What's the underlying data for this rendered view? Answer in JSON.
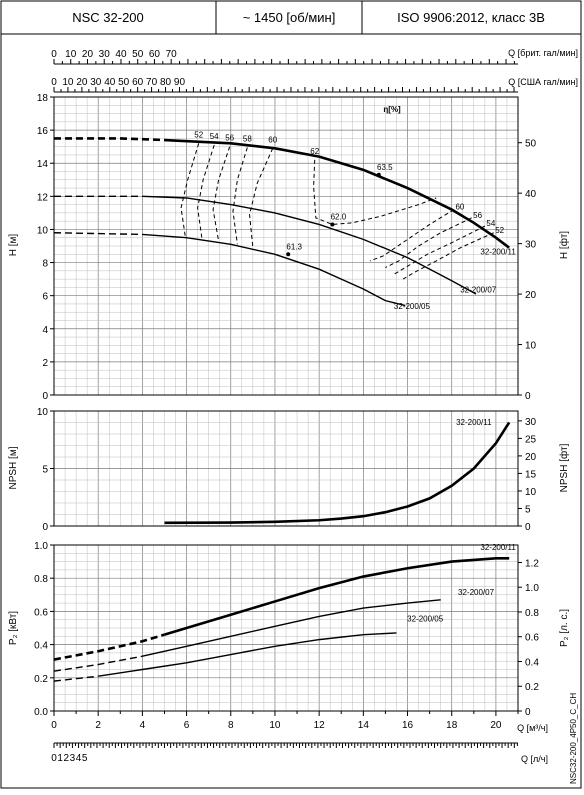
{
  "header": {
    "model": "NSC 32-200",
    "speed": "~ 1450 [об/мин]",
    "standard": "ISO 9906:2012, класс 3B"
  },
  "side_code": "NSC32-200_4P50_C_CH",
  "chart_data": [
    {
      "type": "line",
      "id": "head",
      "ylabel": "H [м]",
      "ylabel_right": "H [фт]",
      "ylim": [
        0,
        18
      ],
      "y_ticks": [
        0,
        2,
        4,
        6,
        8,
        10,
        12,
        14,
        16,
        18
      ],
      "y_right_ticks": [
        0,
        10,
        20,
        30,
        40,
        50
      ],
      "eta_label": "η[%]",
      "series": [
        {
          "name": "32-200/11",
          "x": [
            0,
            3,
            5,
            8,
            10,
            12,
            14,
            16,
            18,
            19,
            20,
            20.6
          ],
          "y": [
            15.5,
            15.5,
            15.4,
            15.2,
            14.9,
            14.4,
            13.6,
            12.5,
            11.2,
            10.4,
            9.5,
            8.9
          ],
          "dash_to": 5
        },
        {
          "name": "32-200/07",
          "x": [
            0,
            4,
            6,
            8,
            10,
            12,
            14,
            16,
            17,
            18,
            19.1
          ],
          "y": [
            12.0,
            12.0,
            11.9,
            11.5,
            11.0,
            10.3,
            9.4,
            8.3,
            7.6,
            6.9,
            6.1
          ],
          "dash_to": 4
        },
        {
          "name": "32-200/05",
          "x": [
            0,
            4,
            6,
            8,
            10,
            12,
            13,
            14,
            15,
            15.9
          ],
          "y": [
            9.8,
            9.7,
            9.5,
            9.1,
            8.5,
            7.6,
            7.0,
            6.4,
            5.7,
            5.4
          ],
          "dash_to": 4
        }
      ],
      "iso_efficiency": [
        {
          "label": "52",
          "x": [
            6.55,
            6.05,
            5.75,
            5.95
          ],
          "y": [
            15.2,
            13.0,
            11.3,
            9.5
          ]
        },
        {
          "label": "54",
          "x": [
            7.25,
            6.75,
            6.5,
            6.7
          ],
          "y": [
            15.1,
            13.0,
            11.3,
            9.4
          ]
        },
        {
          "label": "56",
          "x": [
            7.95,
            7.45,
            7.2,
            7.45
          ],
          "y": [
            15.0,
            13.0,
            11.2,
            9.3
          ]
        },
        {
          "label": "58",
          "x": [
            8.75,
            8.3,
            8.1,
            8.3
          ],
          "y": [
            14.95,
            13.0,
            11.1,
            9.1
          ]
        },
        {
          "label": "60",
          "x": [
            9.9,
            9.2,
            8.85,
            9.0
          ],
          "y": [
            14.9,
            12.8,
            10.9,
            8.9
          ]
        },
        {
          "label": "62",
          "x": [
            11.8,
            11.75,
            11.85,
            12.6,
            13.5,
            14.8,
            16.5,
            17.3
          ],
          "y": [
            14.2,
            12.6,
            10.7,
            10.3,
            10.4,
            10.8,
            11.5,
            11.9
          ]
        },
        {
          "label": "60",
          "x": [
            18.1,
            17.0,
            16.0,
            14.9,
            14.3
          ],
          "y": [
            11.2,
            10.3,
            9.4,
            8.4,
            8.1
          ]
        },
        {
          "label": "56",
          "x": [
            18.9,
            17.5,
            16.5,
            15.6,
            15.0
          ],
          "y": [
            10.7,
            9.8,
            9.0,
            8.1,
            7.7
          ]
        },
        {
          "label": "54",
          "x": [
            19.5,
            18.0,
            16.9,
            15.9,
            15.4
          ],
          "y": [
            10.2,
            9.2,
            8.5,
            7.7,
            7.3
          ]
        },
        {
          "label": "52",
          "x": [
            19.9,
            18.4,
            17.3,
            16.3,
            15.8
          ],
          "y": [
            9.8,
            8.9,
            8.1,
            7.4,
            7.0
          ]
        }
      ],
      "bep_points": [
        {
          "label": "63.5",
          "x": 14.7,
          "y": 13.3
        },
        {
          "label": "62.0",
          "x": 12.6,
          "y": 10.3
        },
        {
          "label": "61.3",
          "x": 10.6,
          "y": 8.5
        }
      ]
    },
    {
      "type": "line",
      "id": "npsh",
      "ylabel": "NPSH [м]",
      "ylabel_right": "NPSH [фт]",
      "ylim": [
        0,
        10
      ],
      "y_ticks": [
        0,
        5,
        10
      ],
      "y_right_ticks": [
        0,
        5,
        10,
        15,
        20,
        25,
        30
      ],
      "series": [
        {
          "name": "32-200/11",
          "x": [
            5,
            8,
            10,
            12,
            13,
            14,
            15,
            16,
            17,
            18,
            19,
            20,
            20.6
          ],
          "y": [
            0.28,
            0.3,
            0.36,
            0.5,
            0.65,
            0.85,
            1.2,
            1.7,
            2.4,
            3.5,
            5.0,
            7.2,
            9.0
          ]
        }
      ]
    },
    {
      "type": "line",
      "id": "power",
      "ylabel": "P₂ [кВт]",
      "ylabel_right": "P₂ [л. с.]",
      "ylim": [
        0,
        1.0
      ],
      "y_ticks": [
        0,
        0.2,
        0.4,
        0.6,
        0.8,
        1.0
      ],
      "y_right_ticks": [
        0,
        0.2,
        0.4,
        0.6,
        0.8,
        1.0,
        1.2
      ],
      "y_right_tick_labels": [
        "0",
        "0.2",
        "0.4",
        "0.6",
        "0.8",
        "1.0",
        "1.2"
      ],
      "y_tick_labels": [
        "0.0",
        "0.2",
        "0.4",
        "0.6",
        "0.8",
        "1.0"
      ],
      "series": [
        {
          "name": "32-200/11",
          "x": [
            0,
            2,
            4,
            5,
            6,
            8,
            10,
            12,
            14,
            16,
            18,
            19,
            20,
            20.6
          ],
          "y": [
            0.31,
            0.36,
            0.42,
            0.46,
            0.5,
            0.58,
            0.66,
            0.74,
            0.81,
            0.86,
            0.9,
            0.91,
            0.92,
            0.92
          ],
          "dash_to": 5
        },
        {
          "name": "32-200/07",
          "x": [
            0,
            2,
            4,
            6,
            8,
            10,
            12,
            14,
            16,
            17.5
          ],
          "y": [
            0.24,
            0.28,
            0.33,
            0.39,
            0.45,
            0.51,
            0.57,
            0.62,
            0.65,
            0.67
          ],
          "dash_to": 4
        },
        {
          "name": "32-200/05",
          "x": [
            0,
            2,
            4,
            6,
            8,
            10,
            12,
            14,
            15.5
          ],
          "y": [
            0.18,
            0.21,
            0.25,
            0.29,
            0.34,
            0.39,
            0.43,
            0.46,
            0.47
          ],
          "dash_to": 2
        }
      ]
    }
  ],
  "x_axes": {
    "top1": {
      "label": "Q [брит. гал/мин]",
      "ticks": [
        0,
        10,
        20,
        30,
        40,
        50,
        60,
        70
      ],
      "factor": 13.198
    },
    "top2": {
      "label": "Q [США гал/мин]",
      "ticks": [
        0,
        10,
        20,
        30,
        40,
        50,
        60,
        70,
        80,
        90
      ],
      "factor": 15.85
    },
    "bottom1": {
      "label": "Q [м³/ч]",
      "ticks": [
        0,
        2,
        4,
        6,
        8,
        10,
        12,
        14,
        16,
        18,
        20
      ],
      "xlim": [
        0,
        21
      ]
    },
    "bottom2": {
      "label": "Q [л/ч]",
      "ticks": [
        0,
        1,
        2,
        3,
        4,
        5
      ],
      "factor": 3.6
    }
  }
}
